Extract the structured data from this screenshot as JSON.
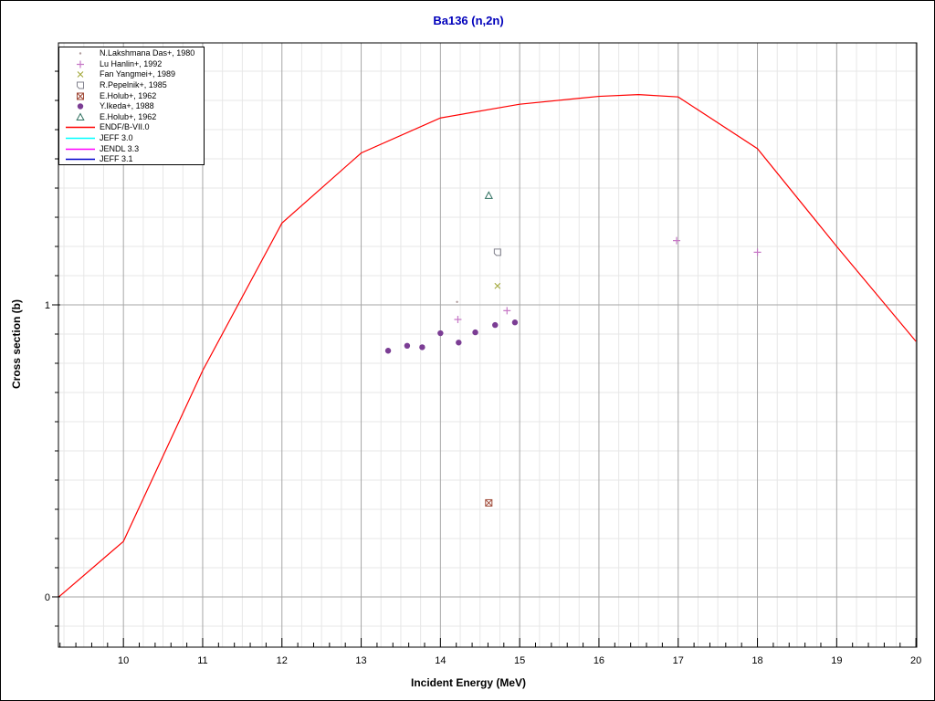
{
  "window": {
    "background": "#ffffff",
    "frame_color": "#000000"
  },
  "chart_data": {
    "type": "line+scatter",
    "title": "Ba136 (n,2n)",
    "title_color": "#0000bb",
    "xlabel": "Incident Energy (MeV)",
    "ylabel": "Cross section (b)",
    "x_axis": {
      "min": 9.18,
      "max": 20.01,
      "major_ticks": [
        10,
        11,
        12,
        13,
        14,
        15,
        16,
        17,
        18,
        19,
        20
      ],
      "minor_tick_step": 0.2,
      "minor_grid_step": 0.25
    },
    "y_axis": {
      "min": -0.172,
      "max": 1.897,
      "major_ticks": [
        0,
        1
      ],
      "minor_tick_step": 0.1,
      "minor_grid_step": 0.1
    },
    "grid": {
      "on": true,
      "major_color": "#a6a6a6",
      "minor_color": "#e7e7e7"
    },
    "legend_position": "top-left",
    "series": [
      {
        "name": "N.Lakshmana Das+, 1980",
        "type": "scatter",
        "marker": "dot",
        "color": "#b09c9c",
        "points": [
          [
            14.21,
            1.01
          ]
        ]
      },
      {
        "name": "Lu Hanlin+, 1992",
        "type": "scatter",
        "marker": "plus",
        "color": "#c678c6",
        "points": [
          [
            14.22,
            0.95
          ],
          [
            14.84,
            0.98
          ],
          [
            16.98,
            1.22
          ],
          [
            18.0,
            1.18
          ]
        ]
      },
      {
        "name": "Fan Yangmei+, 1989",
        "type": "scatter",
        "marker": "x",
        "color": "#a3a93c",
        "points": [
          [
            14.72,
            1.065
          ]
        ]
      },
      {
        "name": "R.Pepelnik+, 1985",
        "type": "scatter",
        "marker": "square-open",
        "color": "#80808c",
        "points": [
          [
            14.72,
            1.18
          ]
        ]
      },
      {
        "name": "E.Holub+, 1962",
        "type": "scatter",
        "marker": "square-cross",
        "color": "#a04a38",
        "points": [
          [
            14.61,
            0.322
          ]
        ]
      },
      {
        "name": "Y.Ikeda+, 1988",
        "type": "scatter",
        "marker": "circle-filled",
        "color": "#7b3d94",
        "points": [
          [
            13.34,
            0.843
          ],
          [
            13.58,
            0.86
          ],
          [
            13.77,
            0.855
          ],
          [
            14.0,
            0.903
          ],
          [
            14.23,
            0.871
          ],
          [
            14.44,
            0.906
          ],
          [
            14.69,
            0.931
          ],
          [
            14.94,
            0.94
          ]
        ]
      },
      {
        "name": "E.Holub+, 1962",
        "type": "scatter",
        "marker": "triangle-open",
        "color": "#2f7060",
        "points": [
          [
            14.61,
            1.374
          ]
        ]
      },
      {
        "name": "ENDF/B-VII.0",
        "type": "line",
        "color": "#ff0000",
        "points": [
          [
            9.185,
            0.0
          ],
          [
            10,
            0.19
          ],
          [
            11,
            0.775
          ],
          [
            12,
            1.28
          ],
          [
            13,
            1.52
          ],
          [
            14,
            1.64
          ],
          [
            15,
            1.687
          ],
          [
            16,
            1.714
          ],
          [
            16.5,
            1.72
          ],
          [
            17,
            1.712
          ],
          [
            18,
            1.535
          ],
          [
            19,
            1.2
          ],
          [
            20,
            0.875
          ]
        ]
      },
      {
        "name": "JEFF 3.0",
        "type": "line",
        "color": "#00ffff",
        "points": [],
        "note": "hidden behind ENDF/B-VII.0 curve"
      },
      {
        "name": "JENDL 3.3",
        "type": "line",
        "color": "#ff00ff",
        "points": [],
        "note": "hidden behind ENDF/B-VII.0 curve"
      },
      {
        "name": "JEFF 3.1",
        "type": "line",
        "color": "#0000cc",
        "points": [],
        "note": "hidden behind ENDF/B-VII.0 curve"
      }
    ]
  }
}
